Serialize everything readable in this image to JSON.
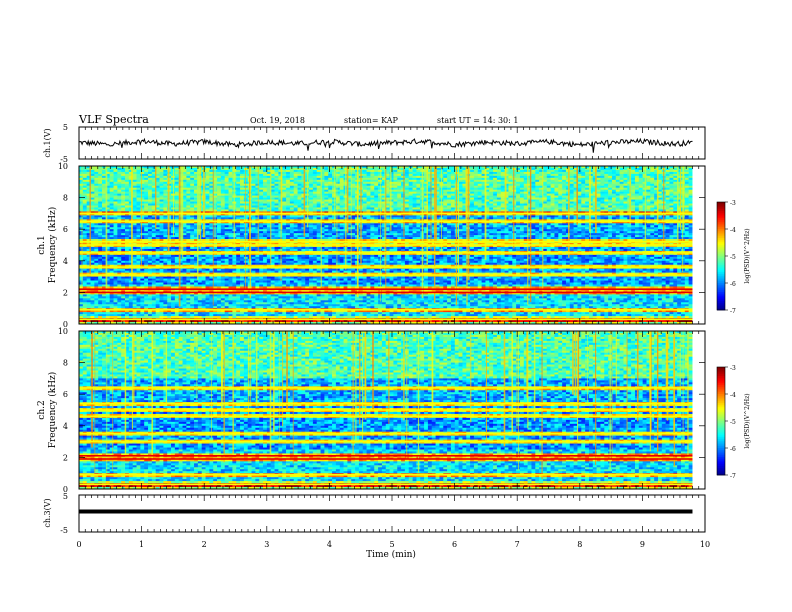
{
  "header": {
    "title": "VLF Spectra",
    "date": "Oct. 19, 2018",
    "station": "station= KAP",
    "start": "start  UT =   14: 30: 1"
  },
  "colors": {
    "trace": "#000000",
    "spectrum_low": "#0000a0",
    "spectrum_high": "#ff0000"
  },
  "colorbar": {
    "label": "log(PSD)(V^2/Hz)",
    "ticks": [
      "-3",
      "-4",
      "-5",
      "-6",
      "-7"
    ]
  },
  "chart_data": [
    {
      "type": "line",
      "ylabel": "ch.1(V)",
      "ylim": [
        -5,
        5
      ],
      "yticks": [
        "5",
        "-5"
      ],
      "xlim": [
        0,
        10
      ],
      "description_series": "waveform fluctuating between about -1 and 1 V",
      "x": [
        0.0,
        0.5,
        1.0,
        1.5,
        2.0,
        2.5,
        3.0,
        3.5,
        4.0,
        4.5,
        5.0,
        5.5,
        6.0,
        6.5,
        7.0,
        7.5,
        8.0,
        8.5,
        9.0,
        9.5,
        9.8
      ],
      "y": [
        0.2,
        -0.5,
        0.6,
        -0.3,
        0.4,
        -0.6,
        0.3,
        -0.2,
        0.5,
        -0.4,
        0.1,
        0.6,
        -0.5,
        0.3,
        -0.2,
        0.4,
        -0.6,
        0.2,
        0.5,
        -0.3,
        0.1
      ]
    },
    {
      "type": "heatmap",
      "ylabel": "ch.1\nFrequency (kHz)",
      "ylim": [
        0,
        10
      ],
      "yticks": [
        "0",
        "2",
        "4",
        "6",
        "8",
        "10"
      ],
      "xlim": [
        0,
        10
      ],
      "clim": [
        -7,
        -3
      ],
      "strong_bands_khz": [
        0.3,
        0.9,
        2.0,
        2.2,
        3.1,
        3.6,
        4.5,
        5.0,
        5.2,
        6.5,
        7.0
      ]
    },
    {
      "type": "heatmap",
      "ylabel": "ch.2\nFrequency (kHz)",
      "ylim": [
        0,
        10
      ],
      "yticks": [
        "0",
        "2",
        "4",
        "6",
        "8",
        "10"
      ],
      "xlim": [
        0,
        10
      ],
      "clim": [
        -7,
        -3
      ],
      "strong_bands_khz": [
        0.3,
        0.9,
        1.9,
        2.1,
        3.0,
        3.5,
        4.6,
        5.0,
        5.4,
        6.4
      ]
    },
    {
      "type": "line",
      "ylabel": "ch.3(V)",
      "ylim": [
        -5,
        5
      ],
      "yticks": [
        "5",
        "-5"
      ],
      "xlim": [
        0,
        10
      ],
      "x": [
        0,
        9.8
      ],
      "y": [
        0,
        0
      ]
    }
  ],
  "xaxis": {
    "label": "Time  (min)",
    "ticks": [
      "0",
      "1",
      "2",
      "3",
      "4",
      "5",
      "6",
      "7",
      "8",
      "9",
      "10"
    ]
  }
}
